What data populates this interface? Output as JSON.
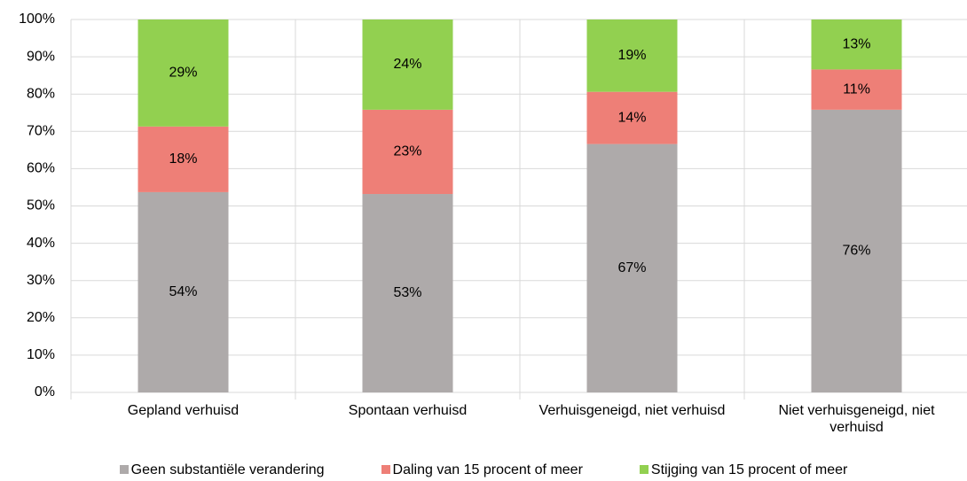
{
  "chart_data": {
    "type": "stacked_bar",
    "categories": [
      "Gepland verhuisd",
      "Spontaan verhuisd",
      "Verhuisgeneigd, niet verhuisd",
      "Niet verhuisgeneigd, niet verhuisd"
    ],
    "series": [
      {
        "name": "Geen substantiële verandering",
        "color": "#aeaaaa",
        "values": [
          53.7,
          53.2,
          66.6,
          75.8
        ],
        "value_labels": [
          "54%",
          "53%",
          "67%",
          "76%"
        ]
      },
      {
        "name": "Daling van 15 procent of meer",
        "color": "#ee7f77",
        "values": [
          17.6,
          22.6,
          14.0,
          10.8
        ],
        "value_labels": [
          "18%",
          "23%",
          "14%",
          "11%"
        ]
      },
      {
        "name": "Stijging van 15 procent of meer",
        "color": "#92d050",
        "values": [
          28.7,
          24.2,
          19.4,
          13.4
        ],
        "value_labels": [
          "29%",
          "24%",
          "19%",
          "13%"
        ]
      }
    ],
    "ylim": [
      0,
      100
    ],
    "yticks": [
      {
        "value": 0,
        "label": "0%"
      },
      {
        "value": 10,
        "label": "10%"
      },
      {
        "value": 20,
        "label": "20%"
      },
      {
        "value": 30,
        "label": "30%"
      },
      {
        "value": 40,
        "label": "40%"
      },
      {
        "value": 50,
        "label": "50%"
      },
      {
        "value": 60,
        "label": "60%"
      },
      {
        "value": 70,
        "label": "70%"
      },
      {
        "value": 80,
        "label": "80%"
      },
      {
        "value": 90,
        "label": "90%"
      },
      {
        "value": 100,
        "label": "100%"
      }
    ],
    "grid": true
  }
}
